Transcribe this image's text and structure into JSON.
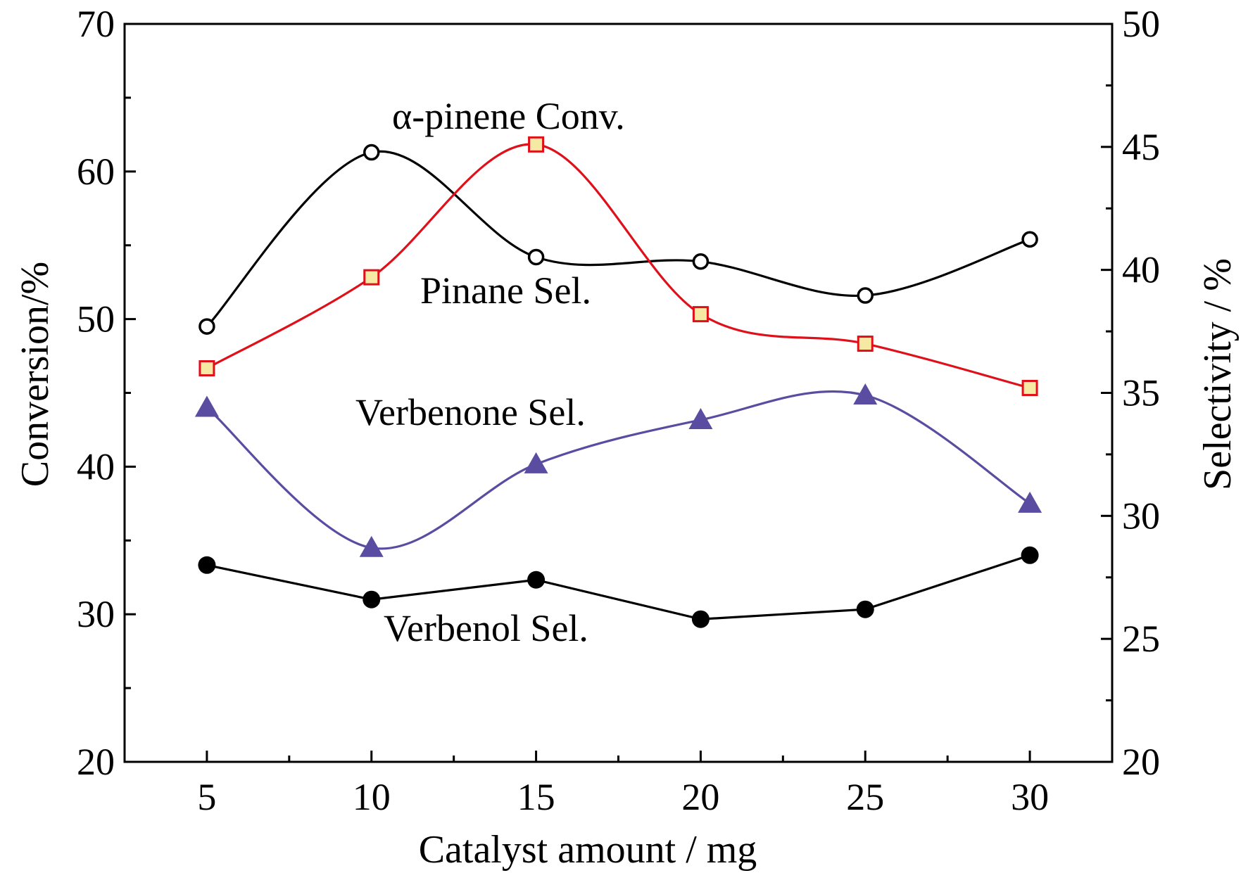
{
  "chart_data": {
    "type": "line",
    "xlabel": "Catalyst amount / mg",
    "ylabel_left": "Conversion/%",
    "ylabel_right": "Selectivity / %",
    "x_ticks": [
      5,
      10,
      15,
      20,
      25,
      30
    ],
    "x_range": [
      2.5,
      32.5
    ],
    "y_left_range": [
      20,
      70
    ],
    "y_left_ticks": [
      20,
      30,
      40,
      50,
      60,
      70
    ],
    "y_right_range": [
      20,
      50
    ],
    "y_right_ticks": [
      20,
      25,
      30,
      35,
      40,
      45,
      50
    ],
    "grid": false,
    "series": [
      {
        "name": "α-pinene Conv.",
        "axis": "left",
        "marker": "open-circle",
        "curve": "smooth",
        "color": "#000000",
        "x": [
          5,
          10,
          15,
          20,
          25,
          30
        ],
        "values": [
          49.5,
          61.3,
          54.2,
          53.9,
          51.6,
          55.4
        ]
      },
      {
        "name": "Pinane Sel.",
        "axis": "right",
        "marker": "square",
        "curve": "smooth",
        "color": "#e0101a",
        "fill": "#f5e9a4",
        "x": [
          5,
          10,
          15,
          20,
          25,
          30
        ],
        "values": [
          36.0,
          39.7,
          45.1,
          38.2,
          37.0,
          35.2
        ]
      },
      {
        "name": "Verbenone Sel.",
        "axis": "right",
        "marker": "triangle",
        "curve": "smooth",
        "color": "#5a4ca0",
        "x": [
          5,
          10,
          15,
          20,
          25,
          30
        ],
        "values": [
          34.4,
          28.7,
          32.1,
          33.9,
          34.9,
          30.5
        ]
      },
      {
        "name": "Verbenol Sel.",
        "axis": "right",
        "marker": "filled-circle",
        "curve": "straight",
        "color": "#000000",
        "x": [
          5,
          10,
          15,
          20,
          25,
          30
        ],
        "values": [
          28.0,
          26.6,
          27.4,
          25.8,
          26.2,
          28.4
        ]
      }
    ],
    "annotations": [
      "α-pinene Conv.",
      "Pinane Sel.",
      "Verbenone Sel.",
      "Verbenol Sel."
    ]
  }
}
